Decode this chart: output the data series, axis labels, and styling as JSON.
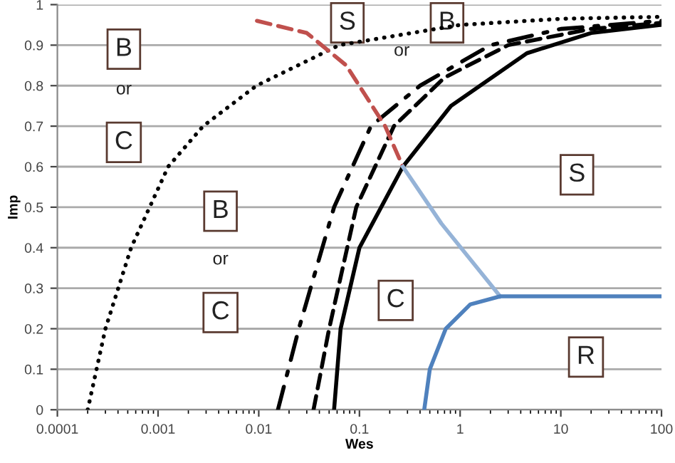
{
  "chart_data": {
    "type": "line",
    "xlabel": "Wes",
    "ylabel": "Imp",
    "log": "x",
    "grid": "y",
    "xlim": [
      0.0001,
      100
    ],
    "xticks": [
      0.0001,
      0.001,
      0.01,
      0.1,
      1,
      10,
      100
    ],
    "ylim": [
      0,
      1
    ],
    "yticks": [
      0,
      0.1,
      0.2,
      0.3,
      0.4,
      0.5,
      0.6,
      0.7,
      0.8,
      0.9,
      1
    ],
    "series": [
      {
        "color": "#000000",
        "line_style": "dotted",
        "x": [
          0.0002,
          0.0003,
          0.00054,
          0.00126,
          0.0028,
          0.0095,
          0.063,
          1,
          10,
          100
        ],
        "values": [
          0,
          0.2,
          0.4,
          0.6,
          0.7,
          0.8,
          0.9,
          0.95,
          0.965,
          0.97
        ]
      },
      {
        "color": "#000000",
        "line_style": "dashdot",
        "x": [
          0.0155,
          0.025,
          0.056,
          0.13,
          0.4,
          2,
          10,
          100
        ],
        "values": [
          0,
          0.2,
          0.5,
          0.7,
          0.8,
          0.9,
          0.94,
          0.96
        ]
      },
      {
        "color": "#000000",
        "line_style": "dashed",
        "x": [
          0.035,
          0.05,
          0.093,
          0.22,
          0.7,
          3,
          20,
          100
        ],
        "values": [
          0,
          0.2,
          0.5,
          0.7,
          0.82,
          0.9,
          0.94,
          0.955
        ]
      },
      {
        "color": "#000000",
        "line_style": "solid",
        "x": [
          0.056,
          0.065,
          0.1,
          0.27,
          0.81,
          4.6,
          20,
          100
        ],
        "values": [
          0,
          0.2,
          0.4,
          0.6,
          0.75,
          0.88,
          0.93,
          0.95
        ]
      },
      {
        "color": "#c0504d",
        "line_style": "dashed",
        "x": [
          0.0096,
          0.03,
          0.074,
          0.18,
          0.27
        ],
        "values": [
          0.96,
          0.93,
          0.85,
          0.7,
          0.6
        ]
      },
      {
        "color": "#95b3d7",
        "line_style": "solid",
        "x": [
          0.27,
          0.65,
          2.5
        ],
        "values": [
          0.6,
          0.46,
          0.28
        ]
      },
      {
        "color": "#4f81bd",
        "line_style": "solid",
        "x": [
          0.44,
          0.5,
          0.72,
          1.26,
          2.5,
          100
        ],
        "values": [
          0,
          0.1,
          0.2,
          0.26,
          0.28,
          0.28
        ]
      }
    ],
    "annotations": [
      "B",
      "or",
      "C",
      "B",
      "or",
      "C",
      "S",
      "or",
      "B",
      "S",
      "C",
      "R"
    ]
  }
}
